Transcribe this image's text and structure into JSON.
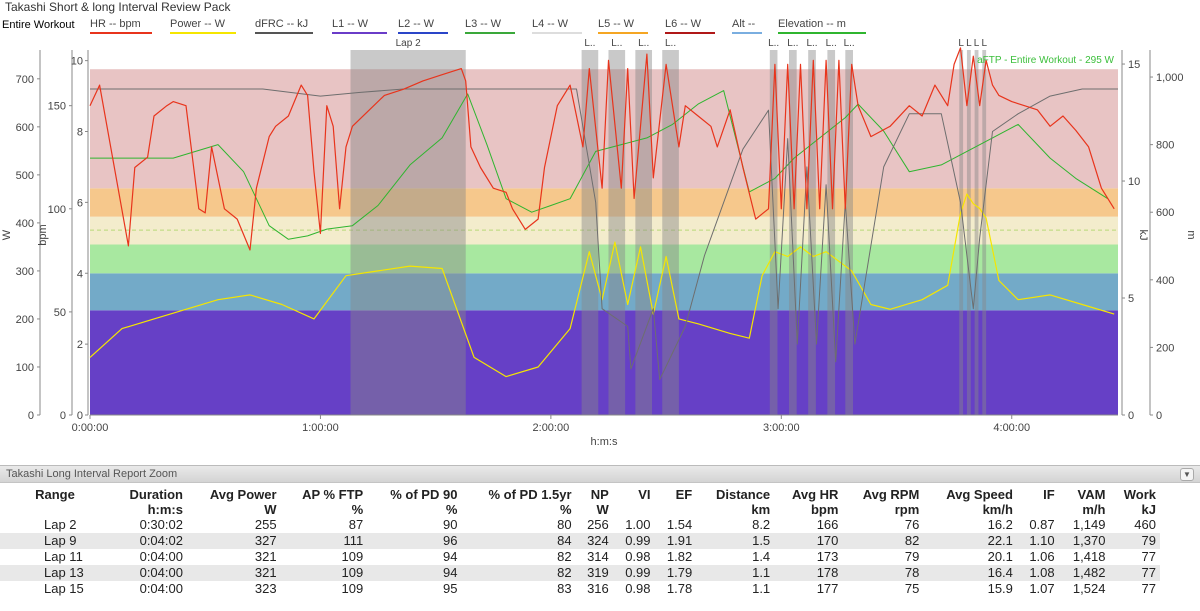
{
  "window": {
    "title": "Takashi Short & long  Interval  Review Pack",
    "range_label": "Entire Workout"
  },
  "legend": [
    {
      "label": "HR  -- bpm",
      "color": "#e8341c"
    },
    {
      "label": "Power  -- W",
      "color": "#f5e600"
    },
    {
      "label": "dFRC  -- kJ",
      "color": "#555555"
    },
    {
      "label": "L1  -- W",
      "color": "#6a3cc8"
    },
    {
      "label": "L2  -- W",
      "color": "#2a45c8"
    },
    {
      "label": "L3  -- W",
      "color": "#3aa83a"
    },
    {
      "label": "L4  -- W",
      "color": "#dddddd"
    },
    {
      "label": "L5  -- W",
      "color": "#f5a623"
    },
    {
      "label": "L6  -- W",
      "color": "#b01818"
    },
    {
      "label": "Alt  --",
      "color": "#7aaee0"
    },
    {
      "label": "Elevation  -- m",
      "color": "#2fb52f"
    }
  ],
  "colors": {
    "hr": "#e8341c",
    "power": "#f5e600",
    "dfrc": "#6e6e6e",
    "elevation": "#2fb52f",
    "zone_l1": "#6640c6",
    "zone_l2": "#73aac8",
    "zone_l3": "#a8e8a0",
    "zone_l4": "#f3eccc",
    "zone_l5": "#f6c88c",
    "zone_l6": "#e8c4c4",
    "lap_shade": "#888888"
  },
  "chart_data": {
    "type": "line",
    "xlabel": "h:m:s",
    "x_ticks": [
      "0:00:00",
      "1:00:00",
      "2:00:00",
      "3:00:00",
      "4:00:00"
    ],
    "x_range_seconds": [
      0,
      16060
    ],
    "annotation": "aFTP - Entire Workout - 295 W",
    "axes": {
      "power_w": {
        "label": "W",
        "ticks": [
          0,
          100,
          200,
          300,
          400,
          500,
          600,
          700
        ],
        "range": [
          0,
          760
        ]
      },
      "hr_bpm": {
        "label": "bpm",
        "ticks": [
          0,
          50,
          100,
          150
        ],
        "range": [
          0,
          177
        ]
      },
      "dfrc_kj": {
        "ticks": [
          0,
          2,
          4,
          6,
          8,
          10
        ],
        "range": [
          0,
          10.3
        ]
      },
      "right_kj": {
        "label": "kJ",
        "ticks": [
          0,
          5,
          10,
          15
        ],
        "range": [
          0,
          15.6
        ]
      },
      "elevation_m": {
        "label": "m",
        "ticks": [
          "0",
          "200",
          "400",
          "600",
          "800",
          "1,000"
        ],
        "range": [
          0,
          1080
        ]
      }
    },
    "power_zones_w": [
      {
        "name": "L1",
        "from": 0,
        "to": 218
      },
      {
        "name": "L2",
        "from": 218,
        "to": 295
      },
      {
        "name": "L3",
        "from": 295,
        "to": 355
      },
      {
        "name": "L4",
        "from": 355,
        "to": 413
      },
      {
        "name": "L5",
        "from": 413,
        "to": 472
      },
      {
        "name": "L6",
        "from": 472,
        "to": 720
      }
    ],
    "laps": [
      {
        "label": "Lap 2",
        "start": 4070,
        "end": 5870
      },
      {
        "label": "L..",
        "start": 7680,
        "end": 7940
      },
      {
        "label": "L..",
        "start": 8100,
        "end": 8360
      },
      {
        "label": "L..",
        "start": 8520,
        "end": 8780
      },
      {
        "label": "L..",
        "start": 8940,
        "end": 9200
      },
      {
        "label": "L..",
        "start": 10620,
        "end": 10740
      },
      {
        "label": "L..",
        "start": 10920,
        "end": 11040
      },
      {
        "label": "L..",
        "start": 11220,
        "end": 11340
      },
      {
        "label": "L..",
        "start": 11520,
        "end": 11640
      },
      {
        "label": "L..",
        "start": 11800,
        "end": 11920
      },
      {
        "label": "L",
        "start": 13580,
        "end": 13640
      },
      {
        "label": "L",
        "start": 13700,
        "end": 13760
      },
      {
        "label": "L",
        "start": 13820,
        "end": 13880
      },
      {
        "label": "L",
        "start": 13940,
        "end": 14000
      }
    ],
    "series": [
      {
        "name": "HR",
        "axis": "hr_bpm",
        "x": [
          0,
          150,
          600,
          700,
          900,
          1000,
          1200,
          1300,
          1500,
          1700,
          1800,
          1900,
          2100,
          2300,
          2500,
          2600,
          2800,
          2900,
          3100,
          3300,
          3400,
          3500,
          3600,
          3700,
          3800,
          3900,
          4000,
          4100,
          4300,
          4600,
          4900,
          5200,
          5500,
          5800,
          5870,
          5950,
          6100,
          6300,
          6500,
          6600,
          6800,
          7000,
          7100,
          7300,
          7500,
          7700,
          7800,
          8000,
          8100,
          8300,
          8400,
          8500,
          8700,
          8800,
          9000,
          9200,
          9300,
          9500,
          9700,
          9800,
          10000,
          10200,
          10400,
          10600,
          10700,
          10800,
          10900,
          11000,
          11100,
          11200,
          11300,
          11400,
          11500,
          11600,
          11700,
          11800,
          11900,
          12000,
          12200,
          12500,
          12800,
          13000,
          13200,
          13400,
          13500,
          13600,
          13700,
          13800,
          13900,
          14000,
          14100,
          14200,
          14400,
          14600,
          14800,
          15000,
          15200,
          15400,
          15600,
          15800,
          16000
        ],
        "values": [
          150,
          160,
          82,
          120,
          125,
          145,
          150,
          152,
          150,
          100,
          98,
          130,
          100,
          95,
          80,
          110,
          135,
          140,
          145,
          160,
          155,
          118,
          88,
          150,
          140,
          100,
          130,
          140,
          146,
          155,
          158,
          162,
          165,
          168,
          162,
          130,
          120,
          110,
          108,
          100,
          90,
          95,
          120,
          150,
          160,
          130,
          168,
          110,
          172,
          110,
          168,
          105,
          175,
          115,
          170,
          130,
          150,
          145,
          140,
          130,
          148,
          120,
          95,
          100,
          170,
          100,
          170,
          100,
          170,
          100,
          172,
          100,
          172,
          100,
          172,
          100,
          170,
          150,
          135,
          140,
          150,
          145,
          160,
          150,
          170,
          178,
          150,
          174,
          150,
          172,
          160,
          155,
          152,
          150,
          148,
          140,
          145,
          138,
          130,
          110,
          100
        ]
      },
      {
        "name": "Power",
        "axis": "power_w",
        "x": [
          0,
          500,
          1000,
          1500,
          2000,
          2500,
          3000,
          3500,
          4000,
          4500,
          5000,
          5500,
          6000,
          6500,
          7000,
          7500,
          7800,
          8000,
          8200,
          8400,
          8600,
          8800,
          9000,
          9200,
          9500,
          10000,
          10300,
          10500,
          10700,
          10900,
          11100,
          11300,
          11500,
          11700,
          11900,
          12200,
          12500,
          13000,
          13400,
          13600,
          13700,
          13800,
          13900,
          14000,
          14200,
          14500,
          15000,
          15500,
          16000
        ],
        "values": [
          120,
          180,
          200,
          220,
          240,
          250,
          230,
          200,
          290,
          300,
          310,
          305,
          120,
          80,
          100,
          180,
          340,
          240,
          360,
          230,
          350,
          210,
          330,
          200,
          190,
          170,
          160,
          290,
          340,
          330,
          350,
          330,
          340,
          320,
          300,
          230,
          220,
          240,
          270,
          420,
          460,
          440,
          430,
          410,
          280,
          240,
          250,
          230,
          210
        ]
      },
      {
        "name": "dFRC",
        "axis": "dfrc_kj",
        "x": [
          0,
          900,
          1800,
          2700,
          3600,
          4200,
          4900,
          5800,
          6400,
          7000,
          7600,
          7900,
          8000,
          8400,
          8450,
          8800,
          8900,
          9300,
          9600,
          10200,
          10600,
          10750,
          10900,
          11050,
          11200,
          11350,
          11500,
          11650,
          11800,
          11950,
          12400,
          12800,
          13300,
          13600,
          13800,
          13900,
          14100,
          14500,
          15000,
          15500,
          16060
        ],
        "values": [
          9.2,
          9.2,
          9.2,
          9.2,
          9.0,
          9.1,
          9.2,
          9.2,
          9.2,
          9.2,
          9.2,
          6.0,
          3.0,
          2.5,
          1.3,
          3.0,
          1.0,
          2.5,
          4.5,
          7.5,
          8.6,
          3.0,
          7.8,
          2.0,
          7.0,
          2.0,
          6.5,
          1.5,
          6.0,
          2.0,
          7.0,
          8.5,
          8.5,
          6.0,
          3.0,
          5.0,
          8.0,
          8.5,
          9.0,
          9.2,
          9.2
        ]
      },
      {
        "name": "Elevation",
        "axis": "elevation_m",
        "x": [
          0,
          400,
          900,
          1300,
          2000,
          2400,
          2800,
          3100,
          3400,
          3700,
          4100,
          4500,
          5000,
          5500,
          5900,
          6200,
          6500,
          6900,
          7200,
          7500,
          7900,
          8300,
          8700,
          9100,
          9500,
          9900,
          10300,
          10700,
          11000,
          11400,
          11800,
          12000,
          12400,
          12800,
          13300,
          13700,
          14100,
          14500,
          15000,
          15400,
          15900
        ],
        "values": [
          760,
          760,
          760,
          760,
          800,
          720,
          560,
          520,
          530,
          550,
          560,
          620,
          740,
          820,
          950,
          800,
          640,
          600,
          620,
          640,
          780,
          800,
          820,
          860,
          920,
          960,
          660,
          700,
          760,
          820,
          880,
          920,
          840,
          720,
          740,
          780,
          820,
          860,
          760,
          700,
          640
        ]
      }
    ]
  },
  "report": {
    "title": "Takashi Long Interval Report Zoom",
    "columns": [
      {
        "l1": "Range",
        "l2": ""
      },
      {
        "l1": "Duration",
        "l2": "h:m:s"
      },
      {
        "l1": "Avg Power",
        "l2": "W"
      },
      {
        "l1": "AP % FTP",
        "l2": "%"
      },
      {
        "l1": "% of PD 90",
        "l2": "%"
      },
      {
        "l1": "% of PD 1.5yr",
        "l2": "%"
      },
      {
        "l1": "NP",
        "l2": "W"
      },
      {
        "l1": "VI",
        "l2": ""
      },
      {
        "l1": "EF",
        "l2": ""
      },
      {
        "l1": "Distance",
        "l2": "km"
      },
      {
        "l1": "Avg HR",
        "l2": "bpm"
      },
      {
        "l1": "Avg RPM",
        "l2": "rpm"
      },
      {
        "l1": "Avg Speed",
        "l2": "km/h"
      },
      {
        "l1": "IF",
        "l2": ""
      },
      {
        "l1": "VAM",
        "l2": "m/h"
      },
      {
        "l1": "Work",
        "l2": "kJ"
      }
    ],
    "rows": [
      [
        "Lap 2",
        "0:30:02",
        "255",
        "87",
        "90",
        "80",
        "256",
        "1.00",
        "1.54",
        "8.2",
        "166",
        "76",
        "16.2",
        "0.87",
        "1,149",
        "460"
      ],
      [
        "Lap 9",
        "0:04:02",
        "327",
        "111",
        "96",
        "84",
        "324",
        "0.99",
        "1.91",
        "1.5",
        "170",
        "82",
        "22.1",
        "1.10",
        "1,370",
        "79"
      ],
      [
        "Lap 11",
        "0:04:00",
        "321",
        "109",
        "94",
        "82",
        "314",
        "0.98",
        "1.82",
        "1.4",
        "173",
        "79",
        "20.1",
        "1.06",
        "1,418",
        "77"
      ],
      [
        "Lap 13",
        "0:04:00",
        "321",
        "109",
        "94",
        "82",
        "319",
        "0.99",
        "1.79",
        "1.1",
        "178",
        "78",
        "16.4",
        "1.08",
        "1,482",
        "77"
      ],
      [
        "Lap 15",
        "0:04:00",
        "323",
        "109",
        "95",
        "83",
        "316",
        "0.98",
        "1.78",
        "1.1",
        "177",
        "75",
        "15.9",
        "1.07",
        "1,524",
        "77"
      ]
    ]
  }
}
